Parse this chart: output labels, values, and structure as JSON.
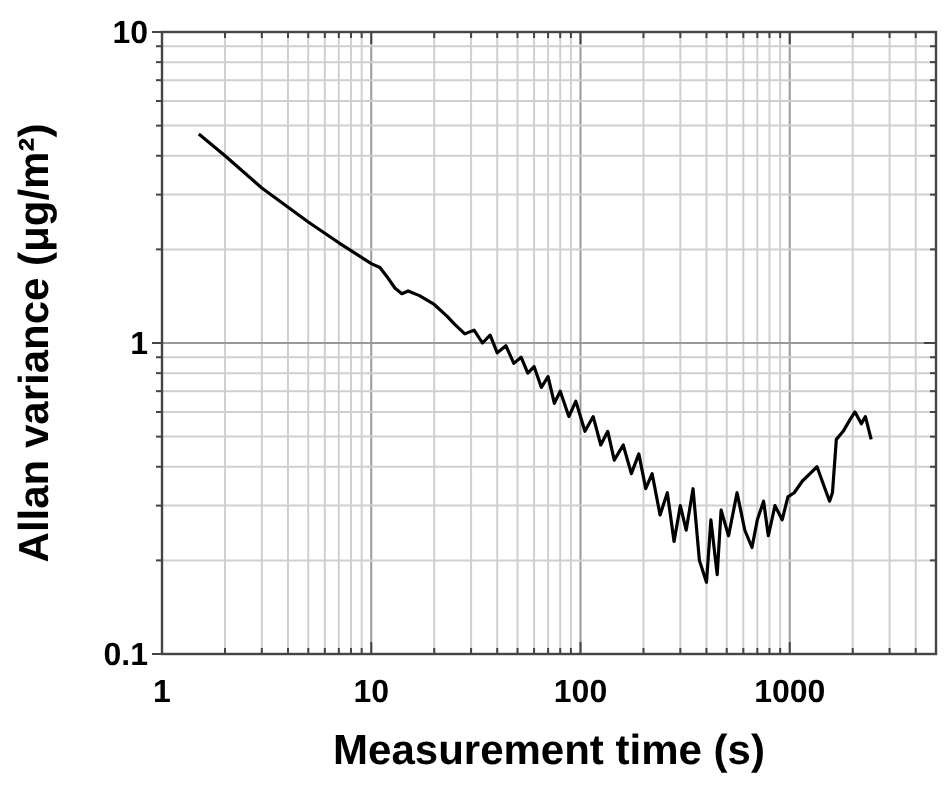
{
  "chart_data": {
    "type": "line",
    "xlabel": "Measurement time (s)",
    "ylabel": "Allan variance (μg/m²)",
    "log": "xy",
    "grid": true,
    "marker": "none",
    "line_style": "solid",
    "xlim": [
      1,
      5000
    ],
    "ylim": [
      0.1,
      10
    ],
    "xticks": [
      1,
      {
        "value": 2,
        "label": null
      },
      {
        "value": 3,
        "label": null
      },
      {
        "value": 4,
        "label": null
      },
      {
        "value": 5,
        "label": null
      },
      {
        "value": 6,
        "label": null
      },
      {
        "value": 7,
        "label": null
      },
      {
        "value": 8,
        "label": null
      },
      {
        "value": 9,
        "label": null
      },
      10,
      {
        "value": 20,
        "label": null
      },
      {
        "value": 30,
        "label": null
      },
      {
        "value": 40,
        "label": null
      },
      {
        "value": 50,
        "label": null
      },
      {
        "value": 60,
        "label": null
      },
      {
        "value": 70,
        "label": null
      },
      {
        "value": 80,
        "label": null
      },
      {
        "value": 90,
        "label": null
      },
      100,
      {
        "value": 200,
        "label": null
      },
      {
        "value": 300,
        "label": null
      },
      {
        "value": 400,
        "label": null
      },
      {
        "value": 500,
        "label": null
      },
      {
        "value": 600,
        "label": null
      },
      {
        "value": 700,
        "label": null
      },
      {
        "value": 800,
        "label": null
      },
      {
        "value": 900,
        "label": null
      },
      1000,
      {
        "value": 2000,
        "label": null
      },
      {
        "value": 3000,
        "label": null
      },
      {
        "value": 4000,
        "label": null
      }
    ],
    "yticks": [
      0.1,
      {
        "value": 0.2,
        "label": null
      },
      {
        "value": 0.3,
        "label": null
      },
      {
        "value": 0.4,
        "label": null
      },
      {
        "value": 0.5,
        "label": null
      },
      {
        "value": 0.6,
        "label": null
      },
      {
        "value": 0.7,
        "label": null
      },
      {
        "value": 0.8,
        "label": null
      },
      {
        "value": 0.9,
        "label": null
      },
      1,
      {
        "value": 2,
        "label": null
      },
      {
        "value": 3,
        "label": null
      },
      {
        "value": 4,
        "label": null
      },
      {
        "value": 5,
        "label": null
      },
      {
        "value": 6,
        "label": null
      },
      {
        "value": 7,
        "label": null
      },
      {
        "value": 8,
        "label": null
      },
      {
        "value": 9,
        "label": null
      },
      10
    ],
    "series": [
      {
        "color": "#000000",
        "x": [
          1.5,
          2,
          3,
          5,
          7,
          10,
          11,
          12,
          13,
          14,
          15,
          17,
          20,
          23,
          25,
          28,
          31,
          34,
          37,
          40,
          44,
          48,
          52,
          56,
          60,
          65,
          70,
          75,
          80,
          88,
          95,
          105,
          115,
          125,
          135,
          145,
          160,
          175,
          190,
          205,
          220,
          240,
          260,
          280,
          300,
          320,
          345,
          370,
          400,
          420,
          450,
          470,
          510,
          560,
          610,
          660,
          700,
          750,
          790,
          850,
          920,
          980,
          1050,
          1150,
          1250,
          1350,
          1450,
          1550,
          1600,
          1670,
          1800,
          1950,
          2050,
          2200,
          2300,
          2450
        ],
        "values": [
          4.7,
          4.0,
          3.15,
          2.45,
          2.1,
          1.8,
          1.75,
          1.62,
          1.5,
          1.44,
          1.47,
          1.42,
          1.33,
          1.22,
          1.15,
          1.07,
          1.1,
          1.0,
          1.06,
          0.93,
          0.98,
          0.86,
          0.9,
          0.8,
          0.84,
          0.72,
          0.78,
          0.64,
          0.7,
          0.58,
          0.65,
          0.52,
          0.58,
          0.47,
          0.52,
          0.42,
          0.47,
          0.38,
          0.44,
          0.34,
          0.38,
          0.28,
          0.33,
          0.23,
          0.3,
          0.25,
          0.34,
          0.2,
          0.17,
          0.27,
          0.18,
          0.29,
          0.24,
          0.33,
          0.25,
          0.22,
          0.27,
          0.31,
          0.24,
          0.3,
          0.27,
          0.32,
          0.33,
          0.36,
          0.38,
          0.4,
          0.35,
          0.31,
          0.33,
          0.49,
          0.52,
          0.57,
          0.6,
          0.55,
          0.58,
          0.49
        ]
      }
    ]
  }
}
